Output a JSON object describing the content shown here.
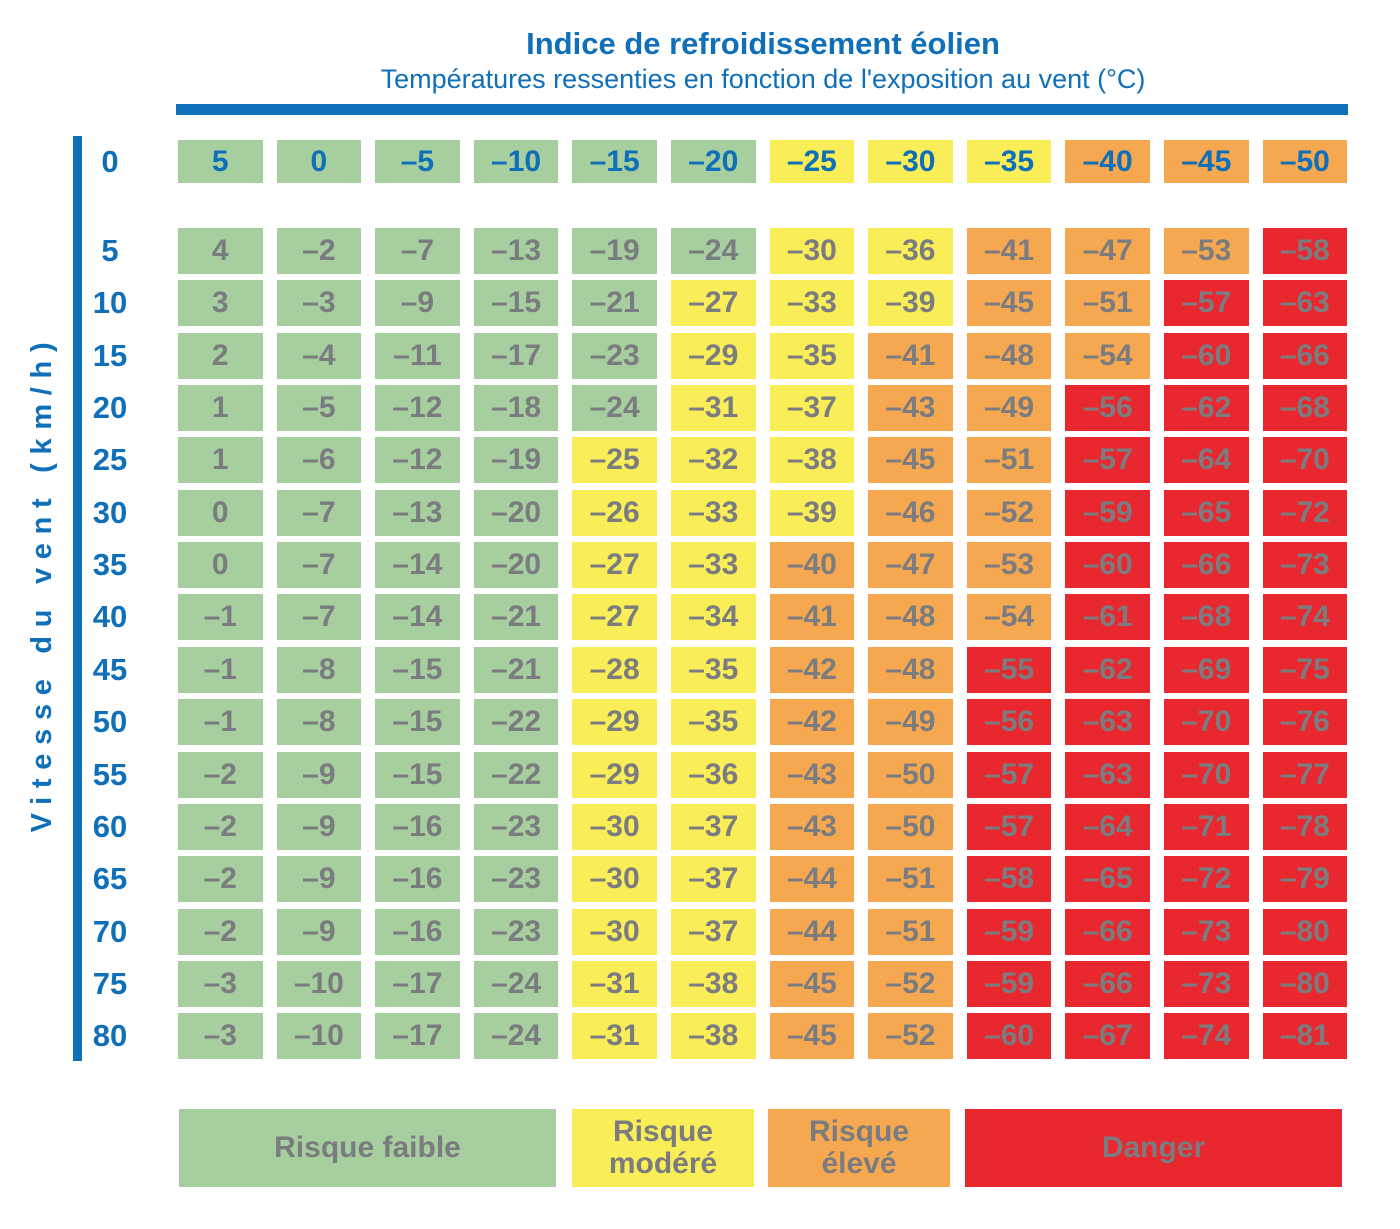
{
  "title": "Indice de refroidissement éolien",
  "subtitle": "Températures ressenties en fonction de l'exposition au vent (°C)",
  "y_axis_label": "Vitesse du vent (km/h)",
  "header_row_wind_speed": "0",
  "colors": {
    "blue": "#0f6fb8",
    "green": "#a6ce9e",
    "yellow": "#f9ed58",
    "orange": "#f6a851",
    "red": "#e8282e",
    "gray": "#7a7c7f"
  },
  "chart_data": {
    "type": "heatmap",
    "title": "Indice de refroidissement éolien",
    "subtitle": "Températures ressenties en fonction de l'exposition au vent (°C)",
    "ylabel": "Vitesse du vent (km/h)",
    "air_temperatures_c": [
      5,
      0,
      -5,
      -10,
      -15,
      -20,
      -25,
      -30,
      -35,
      -40,
      -45,
      -50
    ],
    "wind_speeds_kmh": [
      5,
      10,
      15,
      20,
      25,
      30,
      35,
      40,
      45,
      50,
      55,
      60,
      65,
      70,
      75,
      80
    ],
    "wind_chill_values": [
      [
        4,
        -2,
        -7,
        -13,
        -19,
        -24,
        -30,
        -36,
        -41,
        -47,
        -53,
        -58
      ],
      [
        3,
        -3,
        -9,
        -15,
        -21,
        -27,
        -33,
        -39,
        -45,
        -51,
        -57,
        -63
      ],
      [
        2,
        -4,
        -11,
        -17,
        -23,
        -29,
        -35,
        -41,
        -48,
        -54,
        -60,
        -66
      ],
      [
        1,
        -5,
        -12,
        -18,
        -24,
        -31,
        -37,
        -43,
        -49,
        -56,
        -62,
        -68
      ],
      [
        1,
        -6,
        -12,
        -19,
        -25,
        -32,
        -38,
        -45,
        -51,
        -57,
        -64,
        -70
      ],
      [
        0,
        -7,
        -13,
        -20,
        -26,
        -33,
        -39,
        -46,
        -52,
        -59,
        -65,
        -72
      ],
      [
        0,
        -7,
        -14,
        -20,
        -27,
        -33,
        -40,
        -47,
        -53,
        -60,
        -66,
        -73
      ],
      [
        -1,
        -7,
        -14,
        -21,
        -27,
        -34,
        -41,
        -48,
        -54,
        -61,
        -68,
        -74
      ],
      [
        -1,
        -8,
        -15,
        -21,
        -28,
        -35,
        -42,
        -48,
        -55,
        -62,
        -69,
        -75
      ],
      [
        -1,
        -8,
        -15,
        -22,
        -29,
        -35,
        -42,
        -49,
        -56,
        -63,
        -70,
        -76
      ],
      [
        -2,
        -9,
        -15,
        -22,
        -29,
        -36,
        -43,
        -50,
        -57,
        -63,
        -70,
        -77
      ],
      [
        -2,
        -9,
        -16,
        -23,
        -30,
        -37,
        -43,
        -50,
        -57,
        -64,
        -71,
        -78
      ],
      [
        -2,
        -9,
        -16,
        -23,
        -30,
        -37,
        -44,
        -51,
        -58,
        -65,
        -72,
        -79
      ],
      [
        -2,
        -9,
        -16,
        -23,
        -30,
        -37,
        -44,
        -51,
        -59,
        -66,
        -73,
        -80
      ],
      [
        -3,
        -10,
        -17,
        -24,
        -31,
        -38,
        -45,
        -52,
        -59,
        -66,
        -73,
        -80
      ],
      [
        -3,
        -10,
        -17,
        -24,
        -31,
        -38,
        -45,
        -52,
        -60,
        -67,
        -74,
        -81
      ]
    ],
    "risk_scale": [
      {
        "risk": "faible",
        "min_value": -24,
        "color_key": "green"
      },
      {
        "risk": "modéré",
        "min_value": -39,
        "color_key": "yellow"
      },
      {
        "risk": "élevé",
        "min_value": -54,
        "color_key": "orange"
      },
      {
        "risk": "danger",
        "min_value": -9999,
        "color_key": "red"
      }
    ],
    "legend": [
      {
        "label": "Risque faible",
        "color_key": "green"
      },
      {
        "label": "Risque modéré",
        "color_key": "yellow"
      },
      {
        "label": "Risque élevé",
        "color_key": "orange"
      },
      {
        "label": "Danger",
        "color_key": "red"
      }
    ]
  }
}
